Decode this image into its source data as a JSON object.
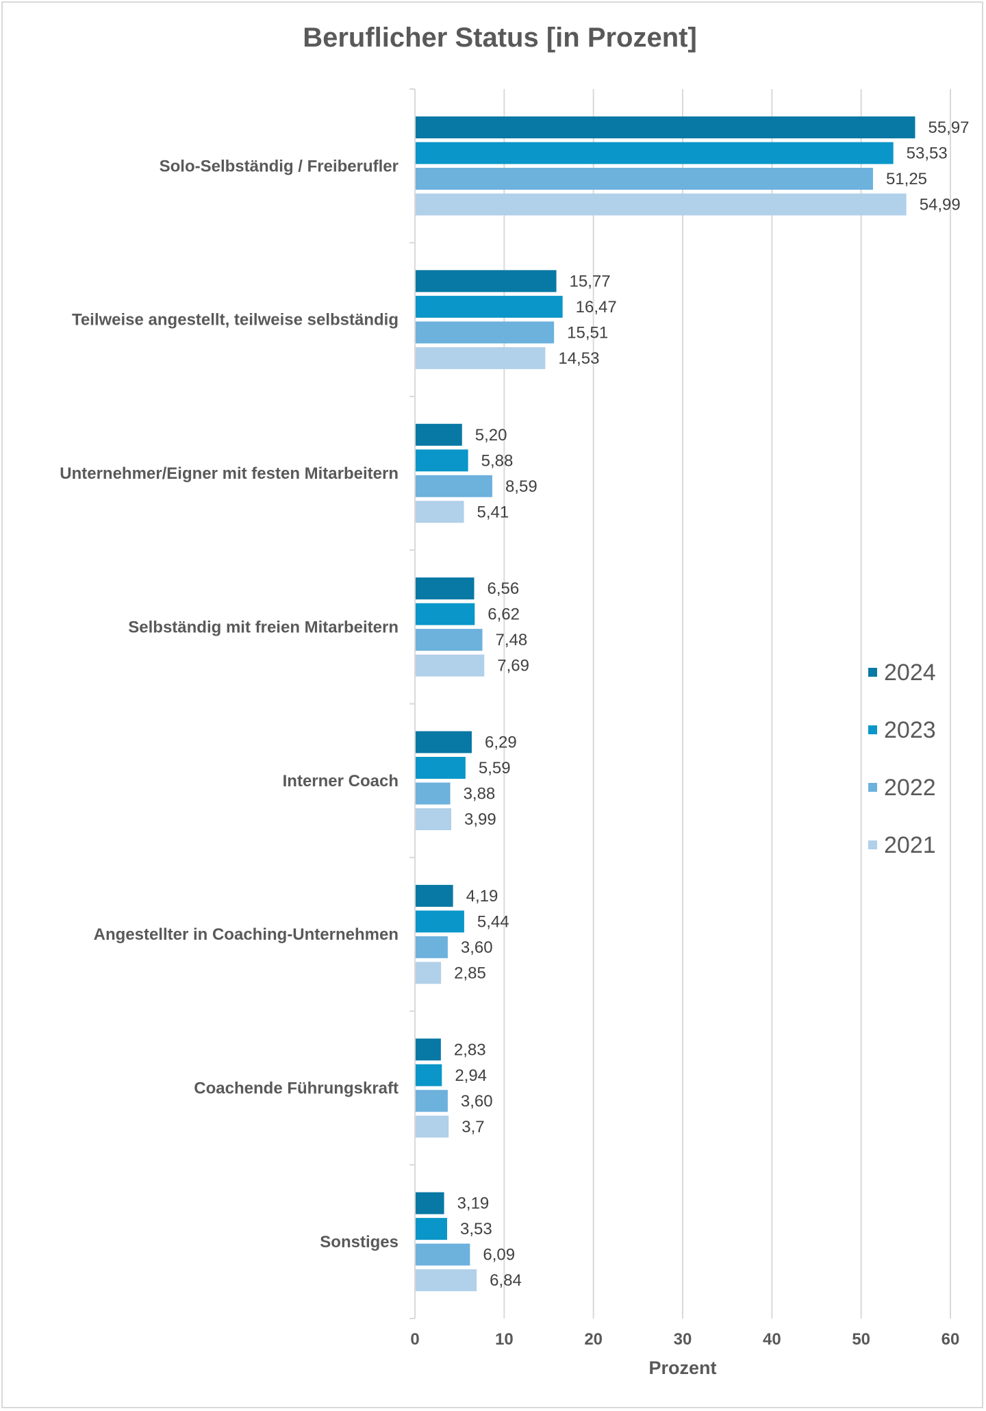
{
  "chart_data": {
    "type": "bar",
    "orientation": "horizontal",
    "title": "Beruflicher Status [in Prozent]",
    "xlabel": "Prozent",
    "ylabel": "",
    "xlim": [
      0,
      60
    ],
    "xticks": [
      "0",
      "10",
      "20",
      "30",
      "40",
      "50",
      "60"
    ],
    "grid": "vertical",
    "legend_position": "right",
    "categories": [
      "Solo-Selbständig / Freiberufler",
      "Teilweise angestellt, teilweise selbständig",
      "Unternehmer/Eigner mit festen Mitarbeitern",
      "Selbständig mit freien Mitarbeitern",
      "Interner Coach",
      "Angestellter in Coaching-Unternehmen",
      "Coachende Führungskraft",
      "Sonstiges"
    ],
    "series": [
      {
        "name": "2024",
        "color": "#0878a4",
        "values": [
          55.97,
          15.77,
          5.2,
          6.56,
          6.29,
          4.19,
          2.83,
          3.19
        ],
        "labels": [
          "55,97",
          "15,77",
          "5,20",
          "6,56",
          "6,29",
          "4,19",
          "2,83",
          "3,19"
        ]
      },
      {
        "name": "2023",
        "color": "#0a96c8",
        "values": [
          53.53,
          16.47,
          5.88,
          6.62,
          5.59,
          5.44,
          2.94,
          3.53
        ],
        "labels": [
          "53,53",
          "16,47",
          "5,88",
          "6,62",
          "5,59",
          "5,44",
          "2,94",
          "3,53"
        ]
      },
      {
        "name": "2022",
        "color": "#6db1dd",
        "values": [
          51.25,
          15.51,
          8.59,
          7.48,
          3.88,
          3.6,
          3.6,
          6.09
        ],
        "labels": [
          "51,25",
          "15,51",
          "8,59",
          "7,48",
          "3,88",
          "3,60",
          "3,60",
          "6,09"
        ]
      },
      {
        "name": "2021",
        "color": "#b1d0e9",
        "values": [
          54.99,
          14.53,
          5.41,
          7.69,
          3.99,
          2.85,
          3.7,
          6.84
        ],
        "labels": [
          "54,99",
          "14,53",
          "5,41",
          "7,69",
          "3,99",
          "2,85",
          "3,7",
          "6,84"
        ]
      }
    ]
  }
}
